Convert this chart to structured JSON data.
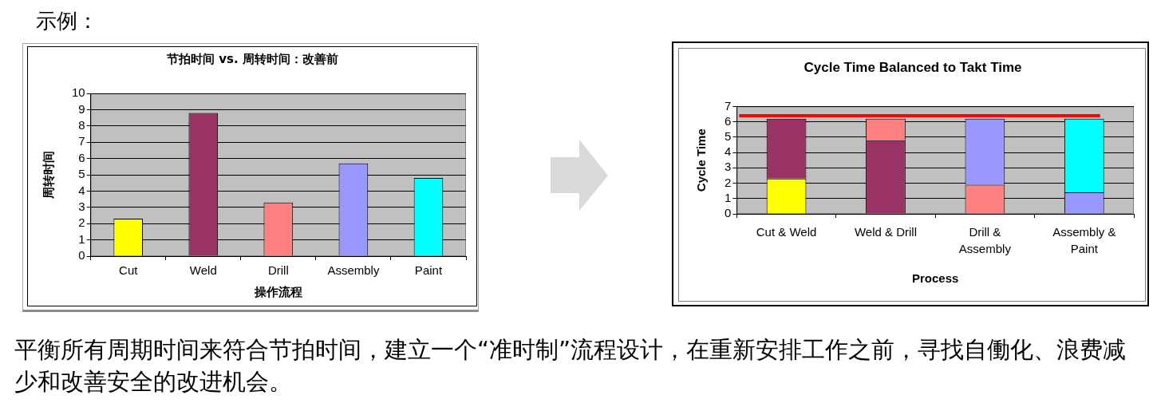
{
  "chart_data": [
    {
      "type": "bar",
      "title": "节拍时间 vs. 周转时间：改善前",
      "xlabel": "操作流程",
      "ylabel": "周转时间",
      "categories": [
        "Cut",
        "Weld",
        "Drill",
        "Assembly",
        "Paint"
      ],
      "values": [
        2.3,
        8.8,
        3.3,
        5.7,
        4.8
      ],
      "colors": [
        "#ffff00",
        "#993366",
        "#ff8080",
        "#9999ff",
        "#00ffff"
      ],
      "ylim": [
        0,
        10
      ],
      "yticks": [
        0,
        1,
        2,
        3,
        4,
        5,
        6,
        7,
        8,
        9,
        10
      ],
      "grid": "y",
      "annotations": [
        "示例："
      ]
    },
    {
      "type": "bar",
      "stacked": true,
      "title": "Cycle Time Balanced to Takt Time",
      "xlabel": "Process",
      "ylabel": "Cycle Time",
      "categories": [
        "Cut & Weld",
        "Weld & Drill",
        "Drill & Assembly",
        "Assembly & Paint"
      ],
      "series": [
        {
          "colors": [
            "#ffff00",
            "#993366",
            "#ff8080",
            "#9999ff"
          ],
          "values": [
            2.3,
            4.8,
            1.9,
            1.4
          ]
        },
        {
          "colors": [
            "#993366",
            "#ff8080",
            "#9999ff",
            "#00ffff"
          ],
          "values": [
            3.9,
            1.4,
            4.3,
            4.8
          ]
        }
      ],
      "ylim": [
        0,
        7
      ],
      "yticks": [
        0,
        1,
        2,
        3,
        4,
        5,
        6,
        7
      ],
      "grid": "y",
      "ref_lines": [
        {
          "axis": "y",
          "value": 6.4,
          "color": "#ff0000"
        }
      ],
      "annotations": [
        "平衡所有周期时间来符合节拍时间，建立一个“准时制”流程设计，在重新安排工作之前，寻找自働化、浪费减少和改善安全的改进机会。"
      ]
    }
  ]
}
